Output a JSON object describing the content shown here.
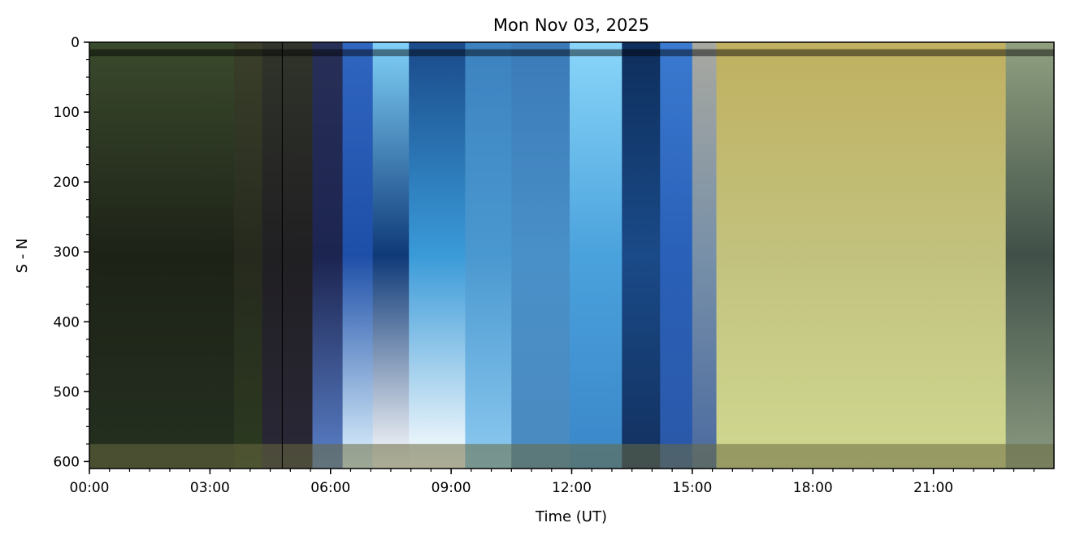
{
  "chart_data": {
    "type": "heatmap",
    "title": "Mon Nov 03, 2025",
    "xlabel": "Time (UT)",
    "ylabel": "S - N",
    "xlim": [
      "00:00",
      "24:00"
    ],
    "ylim": [
      610,
      0
    ],
    "y_inverted": true,
    "x_ticks": [
      "00:00",
      "03:00",
      "06:00",
      "09:00",
      "12:00",
      "15:00",
      "18:00",
      "21:00"
    ],
    "x_tick_hours": [
      0,
      3,
      6,
      9,
      12,
      15,
      18,
      21
    ],
    "x_minor_step_hours": 0.5,
    "y_ticks": [
      0,
      100,
      200,
      300,
      400,
      500,
      600
    ],
    "y_minor_step": 25,
    "grid": false,
    "legend": "none",
    "image": "keogram",
    "colors": {
      "night": "#1f2418",
      "twilight": "#1e4fa8",
      "day": "#5aa8e0",
      "aurora_daylight": "#c2c27e",
      "frame": "#000000"
    }
  }
}
